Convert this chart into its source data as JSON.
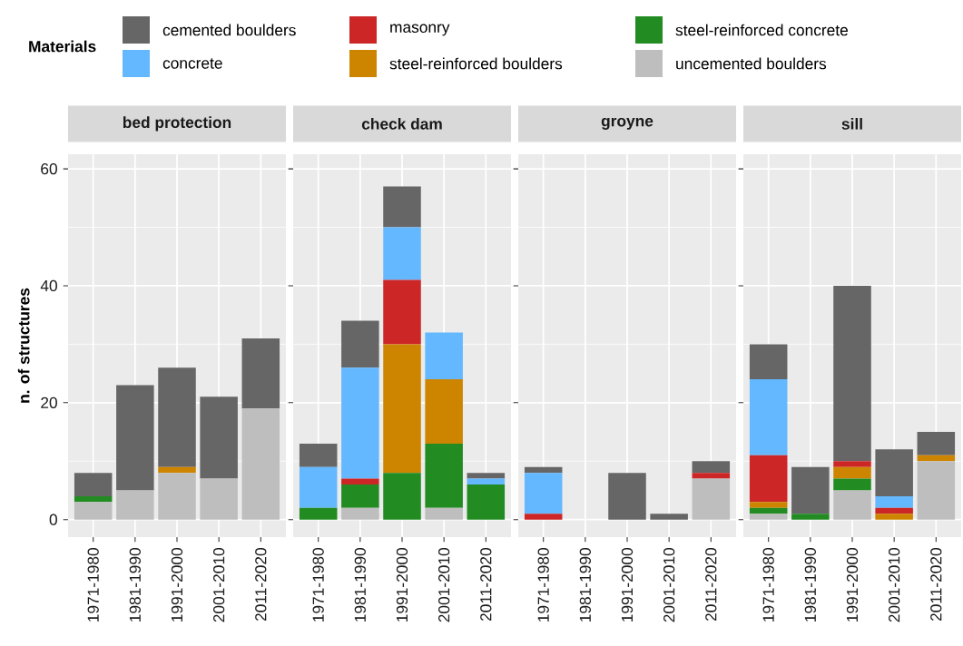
{
  "chart_data": [
    {
      "type": "bar",
      "stacked": true,
      "title": "bed protection",
      "ylabel": "n. of structures",
      "legend_title": "Materials",
      "legend": "top",
      "grid": true,
      "categories": [
        "1971-1980",
        "1981-1990",
        "1991-2000",
        "2001-2010",
        "2011-2020"
      ],
      "ylim": [
        -3,
        62.5
      ],
      "yticks": [
        0,
        20,
        40,
        60
      ],
      "series": [
        {
          "name": "uncemented boulders",
          "color": "#bebebe",
          "values": [
            3,
            5,
            8,
            7,
            19
          ]
        },
        {
          "name": "steel-reinforced concrete",
          "color": "#228b22",
          "values": [
            1,
            0,
            0,
            0,
            0
          ]
        },
        {
          "name": "steel-reinforced boulders",
          "color": "#cd8500",
          "values": [
            0,
            0,
            1,
            0,
            0
          ]
        },
        {
          "name": "masonry",
          "color": "#cd2626",
          "values": [
            0,
            0,
            0,
            0,
            0
          ]
        },
        {
          "name": "concrete",
          "color": "#63b8ff",
          "values": [
            0,
            0,
            0,
            0,
            0
          ]
        },
        {
          "name": "cemented boulders",
          "color": "#666666",
          "values": [
            4,
            18,
            17,
            14,
            12
          ]
        }
      ]
    },
    {
      "type": "bar",
      "stacked": true,
      "title": "check dam",
      "grid": true,
      "tick_labels": "x",
      "categories": [
        "1971-1980",
        "1981-1990",
        "1991-2000",
        "2001-2010",
        "2011-2020"
      ],
      "ylim": [
        -3,
        62.5
      ],
      "yticks": [
        0,
        20,
        40,
        60
      ],
      "series": [
        {
          "color": "#bebebe",
          "values": [
            0,
            2,
            0,
            2,
            0
          ]
        },
        {
          "color": "#228b22",
          "values": [
            2,
            4,
            8,
            11,
            6
          ]
        },
        {
          "color": "#cd8500",
          "values": [
            0,
            0,
            22,
            11,
            0
          ]
        },
        {
          "color": "#cd2626",
          "values": [
            0,
            1,
            11,
            0,
            0
          ]
        },
        {
          "color": "#63b8ff",
          "values": [
            7,
            19,
            9,
            8,
            1
          ]
        },
        {
          "color": "#666666",
          "values": [
            4,
            8,
            7,
            0,
            1
          ]
        }
      ]
    },
    {
      "type": "bar",
      "stacked": true,
      "title": "groyne",
      "grid": true,
      "tick_labels": "x",
      "categories": [
        "1971-1980",
        "1981-1990",
        "1991-2000",
        "2001-2010",
        "2011-2020"
      ],
      "ylim": [
        -3,
        62.5
      ],
      "yticks": [
        0,
        20,
        40,
        60
      ],
      "series": [
        {
          "color": "#bebebe",
          "values": [
            0,
            0,
            0,
            0,
            7
          ]
        },
        {
          "color": "#228b22",
          "values": [
            0,
            0,
            0,
            0,
            0
          ]
        },
        {
          "color": "#cd8500",
          "values": [
            0,
            0,
            0,
            0,
            0
          ]
        },
        {
          "color": "#cd2626",
          "values": [
            1,
            0,
            0,
            0,
            1
          ]
        },
        {
          "color": "#63b8ff",
          "values": [
            7,
            0,
            0,
            0,
            0
          ]
        },
        {
          "color": "#666666",
          "values": [
            1,
            0,
            8,
            1,
            2
          ]
        }
      ]
    },
    {
      "type": "bar",
      "stacked": true,
      "title": "sill",
      "grid": true,
      "tick_labels": "x",
      "categories": [
        "1971-1980",
        "1981-1990",
        "1991-2000",
        "2001-2010",
        "2011-2020"
      ],
      "ylim": [
        -3,
        62.5
      ],
      "yticks": [
        0,
        20,
        40,
        60
      ],
      "series": [
        {
          "color": "#bebebe",
          "values": [
            1,
            0,
            5,
            0,
            10
          ]
        },
        {
          "color": "#228b22",
          "values": [
            1,
            1,
            2,
            0,
            0
          ]
        },
        {
          "color": "#cd8500",
          "values": [
            1,
            0,
            2,
            1,
            1
          ]
        },
        {
          "color": "#cd2626",
          "values": [
            8,
            0,
            1,
            1,
            0
          ]
        },
        {
          "color": "#63b8ff",
          "values": [
            13,
            0,
            0,
            2,
            0
          ]
        },
        {
          "color": "#666666",
          "values": [
            6,
            8,
            30,
            8,
            4
          ]
        }
      ]
    }
  ]
}
